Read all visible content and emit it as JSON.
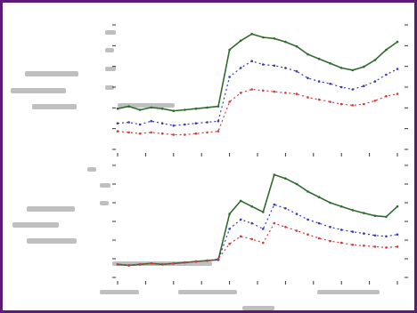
{
  "colors": {
    "frame": "#5b1a78",
    "series": [
      "#2f6b2f",
      "#3a3ab8",
      "#d23c3c"
    ]
  },
  "chart_data": [
    {
      "type": "line",
      "panel": "top",
      "x": [
        0,
        2,
        4,
        6,
        8,
        10,
        12,
        14,
        16,
        18,
        20,
        22,
        24,
        26,
        28,
        30,
        32,
        34,
        36,
        38,
        40,
        42,
        44,
        46,
        48,
        50
      ],
      "series": [
        {
          "values": [
            4.6,
            4.8,
            4.5,
            4.7,
            4.6,
            4.4,
            4.5,
            4.6,
            4.7,
            4.8,
            9.8,
            10.6,
            11.2,
            10.9,
            10.8,
            10.5,
            10.1,
            9.4,
            9.0,
            8.6,
            8.2,
            8.0,
            8.3,
            8.9,
            9.8,
            10.5
          ]
        },
        {
          "values": [
            3.3,
            3.4,
            3.2,
            3.5,
            3.3,
            3.1,
            3.2,
            3.3,
            3.4,
            3.5,
            7.4,
            8.2,
            8.8,
            8.5,
            8.4,
            8.2,
            7.9,
            7.3,
            7.0,
            6.8,
            6.5,
            6.3,
            6.6,
            7.0,
            7.6,
            8.1
          ]
        },
        {
          "values": [
            2.6,
            2.5,
            2.4,
            2.5,
            2.4,
            2.3,
            2.3,
            2.4,
            2.5,
            2.6,
            5.2,
            6.0,
            6.3,
            6.2,
            6.1,
            6.0,
            5.9,
            5.6,
            5.4,
            5.2,
            5.0,
            4.9,
            5.0,
            5.3,
            5.7,
            5.9
          ]
        }
      ],
      "ylim": [
        1,
        12
      ]
    },
    {
      "type": "line",
      "panel": "bottom",
      "x": [
        0,
        2,
        4,
        6,
        8,
        10,
        12,
        14,
        16,
        18,
        20,
        22,
        24,
        26,
        28,
        30,
        32,
        34,
        36,
        38,
        40,
        42,
        44,
        46,
        48,
        50
      ],
      "series": [
        {
          "values": [
            2.4,
            2.3,
            2.4,
            2.5,
            2.4,
            2.5,
            2.6,
            2.7,
            2.8,
            2.9,
            7.8,
            9.2,
            8.6,
            8.0,
            12.0,
            11.6,
            11.0,
            10.2,
            9.6,
            9.0,
            8.6,
            8.2,
            7.9,
            7.6,
            7.5,
            8.6
          ]
        },
        {
          "values": [
            2.4,
            2.3,
            2.4,
            2.5,
            2.4,
            2.5,
            2.6,
            2.7,
            2.8,
            2.9,
            6.2,
            7.2,
            6.8,
            6.2,
            8.8,
            8.4,
            7.8,
            7.2,
            6.8,
            6.4,
            6.1,
            5.9,
            5.7,
            5.5,
            5.4,
            5.6
          ]
        },
        {
          "values": [
            2.4,
            2.3,
            2.4,
            2.5,
            2.4,
            2.5,
            2.6,
            2.7,
            2.8,
            3.0,
            4.6,
            5.4,
            5.1,
            4.7,
            6.8,
            6.4,
            6.0,
            5.6,
            5.2,
            4.9,
            4.7,
            4.5,
            4.4,
            4.3,
            4.2,
            4.3
          ]
        }
      ],
      "ylim": [
        1,
        13
      ]
    }
  ]
}
